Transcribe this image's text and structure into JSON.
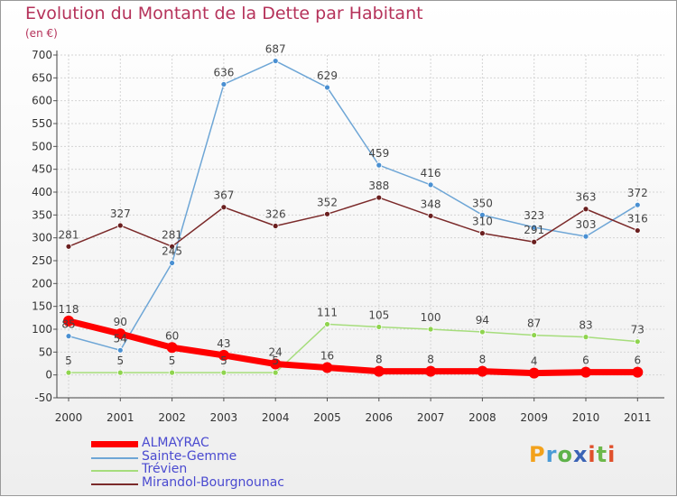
{
  "title": "Evolution du Montant de la Dette par Habitant",
  "unit_label": "(en €)",
  "logo_text": "Proxiti",
  "chart_data": {
    "type": "line",
    "title": "Evolution du Montant de la Dette par Habitant",
    "ylabel": "(en €)",
    "x": [
      "2000",
      "2001",
      "2002",
      "2003",
      "2004",
      "2005",
      "2006",
      "2007",
      "2008",
      "2009",
      "2010",
      "2011"
    ],
    "ylim": [
      -50,
      700
    ],
    "yticks": [
      -50,
      0,
      50,
      100,
      150,
      200,
      250,
      300,
      350,
      400,
      450,
      500,
      550,
      600,
      650,
      700
    ],
    "grid": true,
    "legend_position": "bottom-left",
    "series": [
      {
        "name": "ALMAYRAC",
        "color": "#ff0000",
        "values": [
          118,
          90,
          60,
          43,
          24,
          16,
          8,
          8,
          8,
          4,
          6,
          6
        ]
      },
      {
        "name": "Sainte-Gemme",
        "color": "#6ea6d6",
        "values": [
          85,
          54,
          245,
          636,
          687,
          629,
          459,
          416,
          350,
          323,
          303,
          372
        ]
      },
      {
        "name": "Trévien",
        "color": "#a6dd7c",
        "values": [
          5,
          5,
          5,
          5,
          5,
          111,
          105,
          100,
          94,
          87,
          83,
          73
        ]
      },
      {
        "name": "Mirandol-Bourgnounac",
        "color": "#7b2a2a",
        "values": [
          281,
          327,
          281,
          367,
          326,
          352,
          388,
          348,
          310,
          291,
          363,
          316
        ]
      }
    ],
    "point_labels": [
      [
        "118",
        "90",
        "60",
        "43",
        "24",
        "16",
        "8",
        "8",
        "8",
        "4",
        "6",
        "6"
      ],
      [
        "85",
        "54",
        "245",
        "636",
        "687",
        "629",
        "459",
        "416",
        "350",
        "323",
        "303",
        "372"
      ],
      [
        "5",
        "5",
        "5",
        "5",
        "5",
        "111",
        "105",
        "100",
        "94",
        "87",
        "83",
        "73"
      ],
      [
        "281",
        "327",
        "281",
        "367",
        "326",
        "352",
        "388",
        "348",
        "310",
        "291",
        "363",
        "316"
      ]
    ]
  }
}
